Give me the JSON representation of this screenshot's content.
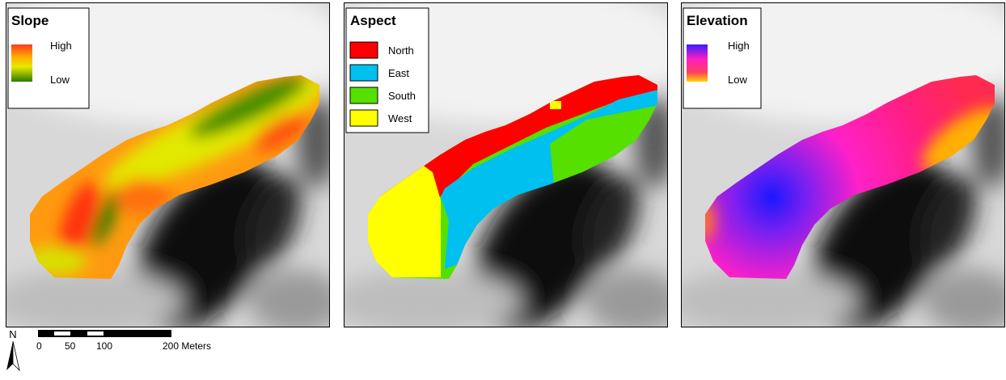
{
  "panels": [
    {
      "title": "Slope",
      "legend": {
        "high": "High",
        "low": "Low"
      }
    },
    {
      "title": "Aspect",
      "legend": {
        "items": [
          "North",
          "East",
          "South",
          "West"
        ]
      }
    },
    {
      "title": "Elevation",
      "legend": {
        "high": "High",
        "low": "Low"
      }
    }
  ],
  "north_arrow": {
    "label": "N"
  },
  "scale_bar": {
    "labels": [
      "0",
      "50",
      "100",
      "200 Meters"
    ]
  }
}
